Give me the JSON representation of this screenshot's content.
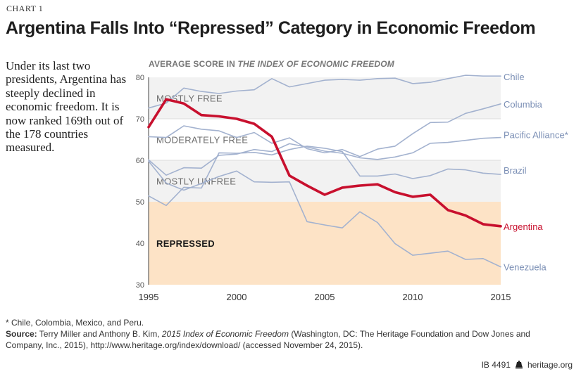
{
  "header": {
    "chart_number": "CHART 1",
    "title": "Argentina Falls Into “Repressed” Category in Economic Freedom"
  },
  "intro_text": "Under its last two presidents, Argentina has steeply declined in economic freedom. It is now ranked 169th out of the 178 countries measured.",
  "subtitle": {
    "prefix": "AVERAGE SCORE IN ",
    "emphasis": "THE INDEX OF ECONOMIC FREEDOM"
  },
  "footnote": "* Chile, Colombia, Mexico, and Peru.",
  "source": {
    "label": "Source:",
    "authors": " Terry Miller and Anthony B. Kim, ",
    "work": "2015 Index of Economic Freedom",
    "rest": " (Washington, DC: The Heritage Foundation and Dow Jones and Company, Inc., 2015), http://www.heritage.org/index/download/ (accessed November 24, 2015)."
  },
  "footer": {
    "id": "IB 4491",
    "site": "heritage.org"
  },
  "colors": {
    "argentina": "#c8102e",
    "others": "#a3b2cf",
    "band_light": "#f2f2f2",
    "band_white": "#ffffff",
    "repressed": "#fde3c6",
    "label_blue": "#7b8fb5"
  },
  "chart_data": {
    "type": "line",
    "xlim": [
      1995,
      2015
    ],
    "ylim": [
      30,
      80
    ],
    "x_ticks": [
      "1995",
      "2000",
      "2005",
      "2010",
      "2015"
    ],
    "y_ticks": [
      "30",
      "40",
      "50",
      "60",
      "70",
      "80"
    ],
    "categories": [
      {
        "name": "MOSTLY FREE",
        "range": [
          70,
          80
        ]
      },
      {
        "name": "MODERATELY FREE",
        "range": [
          60,
          70
        ]
      },
      {
        "name": "MOSTLY UNFREE",
        "range": [
          50,
          60
        ]
      },
      {
        "name": "REPRESSED",
        "range": [
          30,
          50
        ]
      }
    ],
    "x": [
      1995,
      1996,
      1997,
      1998,
      1999,
      2000,
      2001,
      2002,
      2003,
      2004,
      2005,
      2006,
      2007,
      2008,
      2009,
      2010,
      2011,
      2012,
      2013,
      2014,
      2015
    ],
    "series": [
      {
        "name": "Chile",
        "values": [
          72.6,
          73.8,
          77.4,
          76.6,
          76.1,
          76.7,
          77.0,
          79.7,
          77.7,
          78.5,
          79.3,
          79.5,
          79.3,
          79.7,
          79.8,
          78.5,
          78.8,
          79.7,
          80.5,
          80.3,
          80.3
        ]
      },
      {
        "name": "Columbia",
        "values": [
          65.7,
          65.5,
          68.3,
          67.5,
          67.1,
          65.5,
          66.7,
          64.1,
          65.4,
          62.8,
          61.8,
          62.6,
          60.9,
          62.7,
          63.4,
          66.4,
          69.1,
          69.2,
          71.3,
          72.4,
          73.6
        ]
      },
      {
        "name": "Brazil",
        "values": [
          51.4,
          49.1,
          53.5,
          53.3,
          61.8,
          61.7,
          61.9,
          61.3,
          62.6,
          63.4,
          62.9,
          62.1,
          56.2,
          56.2,
          56.7,
          55.6,
          56.3,
          57.9,
          57.7,
          56.9,
          56.6
        ]
      },
      {
        "name": "Pacific Alliance*",
        "values": [
          60.1,
          56.4,
          58.2,
          58.1,
          61.2,
          61.5,
          62.6,
          62.1,
          64.0,
          63.2,
          62.2,
          61.7,
          60.6,
          60.2,
          60.8,
          61.8,
          64.1,
          64.3,
          64.8,
          65.3,
          65.5
        ]
      },
      {
        "name": "Argentina",
        "values": [
          68.0,
          74.7,
          73.7,
          70.9,
          70.6,
          70.0,
          68.8,
          65.7,
          56.3,
          53.9,
          51.7,
          53.4,
          53.9,
          54.2,
          52.3,
          51.2,
          51.7,
          48.0,
          46.7,
          44.6,
          44.1
        ]
      },
      {
        "name": "Venezuela",
        "values": [
          59.8,
          54.5,
          52.8,
          54.4,
          56.1,
          57.4,
          54.8,
          54.7,
          54.8,
          45.2,
          44.4,
          43.7,
          47.6,
          45.0,
          39.9,
          37.1,
          37.6,
          38.1,
          36.1,
          36.3,
          34.3
        ]
      }
    ]
  }
}
